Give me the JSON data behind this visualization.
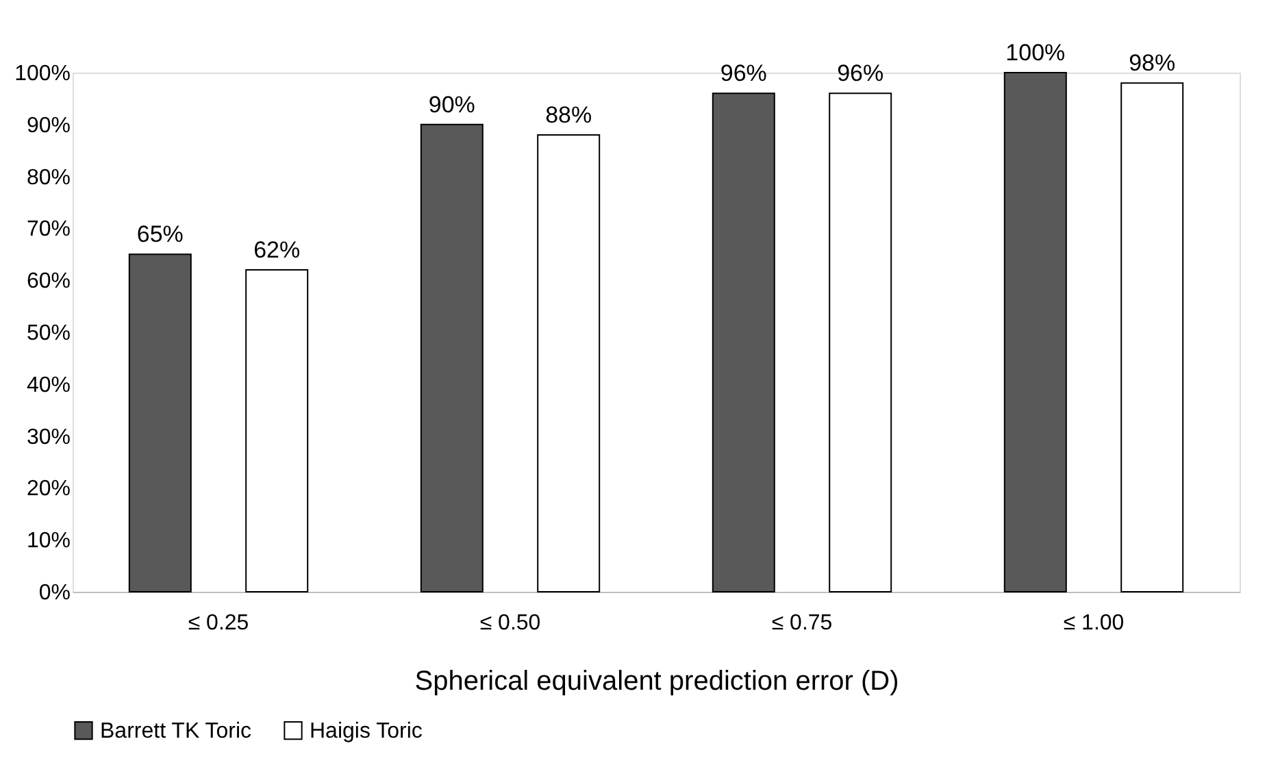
{
  "chart_data": {
    "type": "bar",
    "xlabel": "Spherical equivalent prediction error (D)",
    "categories": [
      "≤ 0.25",
      "≤ 0.50",
      "≤ 0.75",
      "≤ 1.00"
    ],
    "series": [
      {
        "name": "Barrett TK Toric",
        "color": "#595959",
        "values": [
          65,
          90,
          96,
          100
        ],
        "value_labels": [
          "65%",
          "90%",
          "96%",
          "100%"
        ]
      },
      {
        "name": "Haigis Toric",
        "color": "#ffffff",
        "values": [
          62,
          88,
          96,
          98
        ],
        "value_labels": [
          "62%",
          "88%",
          "96%",
          "98%"
        ]
      }
    ],
    "ylim": [
      0,
      100
    ],
    "yticks": [
      {
        "value": 0,
        "label": "0%"
      },
      {
        "value": 10,
        "label": "10%"
      },
      {
        "value": 20,
        "label": "20%"
      },
      {
        "value": 30,
        "label": "30%"
      },
      {
        "value": 40,
        "label": "40%"
      },
      {
        "value": 50,
        "label": "50%"
      },
      {
        "value": 60,
        "label": "60%"
      },
      {
        "value": 70,
        "label": "70%"
      },
      {
        "value": 80,
        "label": "80%"
      },
      {
        "value": 90,
        "label": "90%"
      },
      {
        "value": 100,
        "label": "100%"
      }
    ],
    "grid": false,
    "legend": "bottom"
  }
}
